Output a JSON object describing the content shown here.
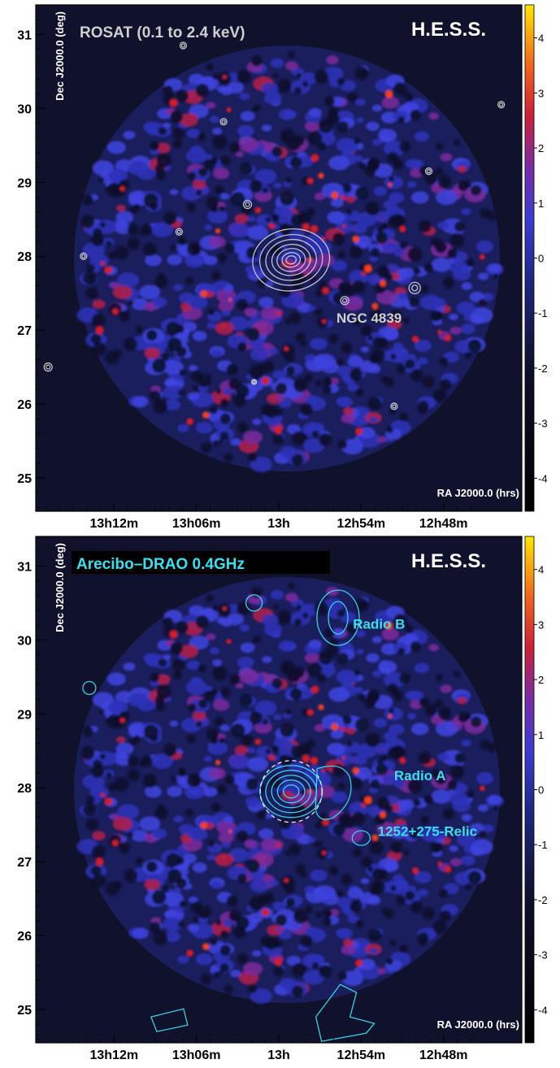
{
  "chart_data": [
    {
      "type": "heatmap",
      "telescope_label": "H.E.S.S.",
      "overlay_label": "ROSAT (0.1 to 2.4 keV)",
      "overlay_color": "#cfcfcf",
      "xlabel": "RA J2000.0 (hrs)",
      "ylabel": "Dec J2000.0 (deg)",
      "x_ticks": [
        "13h12m",
        "13h06m",
        "13h",
        "12h54m",
        "12h48m"
      ],
      "y_ticks": [
        "25",
        "26",
        "27",
        "28",
        "29",
        "30",
        "31"
      ],
      "colorbar_ticks": [
        "4",
        "3",
        "2",
        "1",
        "0",
        "-1",
        "-2",
        "-3",
        "-4"
      ],
      "colorbar_range": [
        -4.6,
        4.6
      ],
      "annotations": [
        {
          "text": "NGC 4839",
          "ra_h": 12.93,
          "dec": 27.1
        }
      ]
    },
    {
      "type": "heatmap",
      "telescope_label": "H.E.S.S.",
      "overlay_label": "Arecibo–DRAO 0.4GHz",
      "overlay_color": "#39e0f0",
      "xlabel": "RA J2000.0 (hrs)",
      "ylabel": "Dec J2000.0 (deg)",
      "x_ticks": [
        "13h12m",
        "13h06m",
        "13h",
        "12h54m",
        "12h48m"
      ],
      "y_ticks": [
        "25",
        "26",
        "27",
        "28",
        "29",
        "30",
        "31"
      ],
      "colorbar_ticks": [
        "4",
        "3",
        "2",
        "1",
        "0",
        "-1",
        "-2",
        "-3",
        "-4"
      ],
      "colorbar_range": [
        -4.6,
        4.6
      ],
      "annotations": [
        {
          "text": "Radio B",
          "ra_h": 12.91,
          "dec": 30.15
        },
        {
          "text": "Radio A",
          "ra_h": 12.86,
          "dec": 28.1
        },
        {
          "text": "1252+275-Relic",
          "ra_h": 12.88,
          "dec": 27.35
        }
      ]
    }
  ]
}
